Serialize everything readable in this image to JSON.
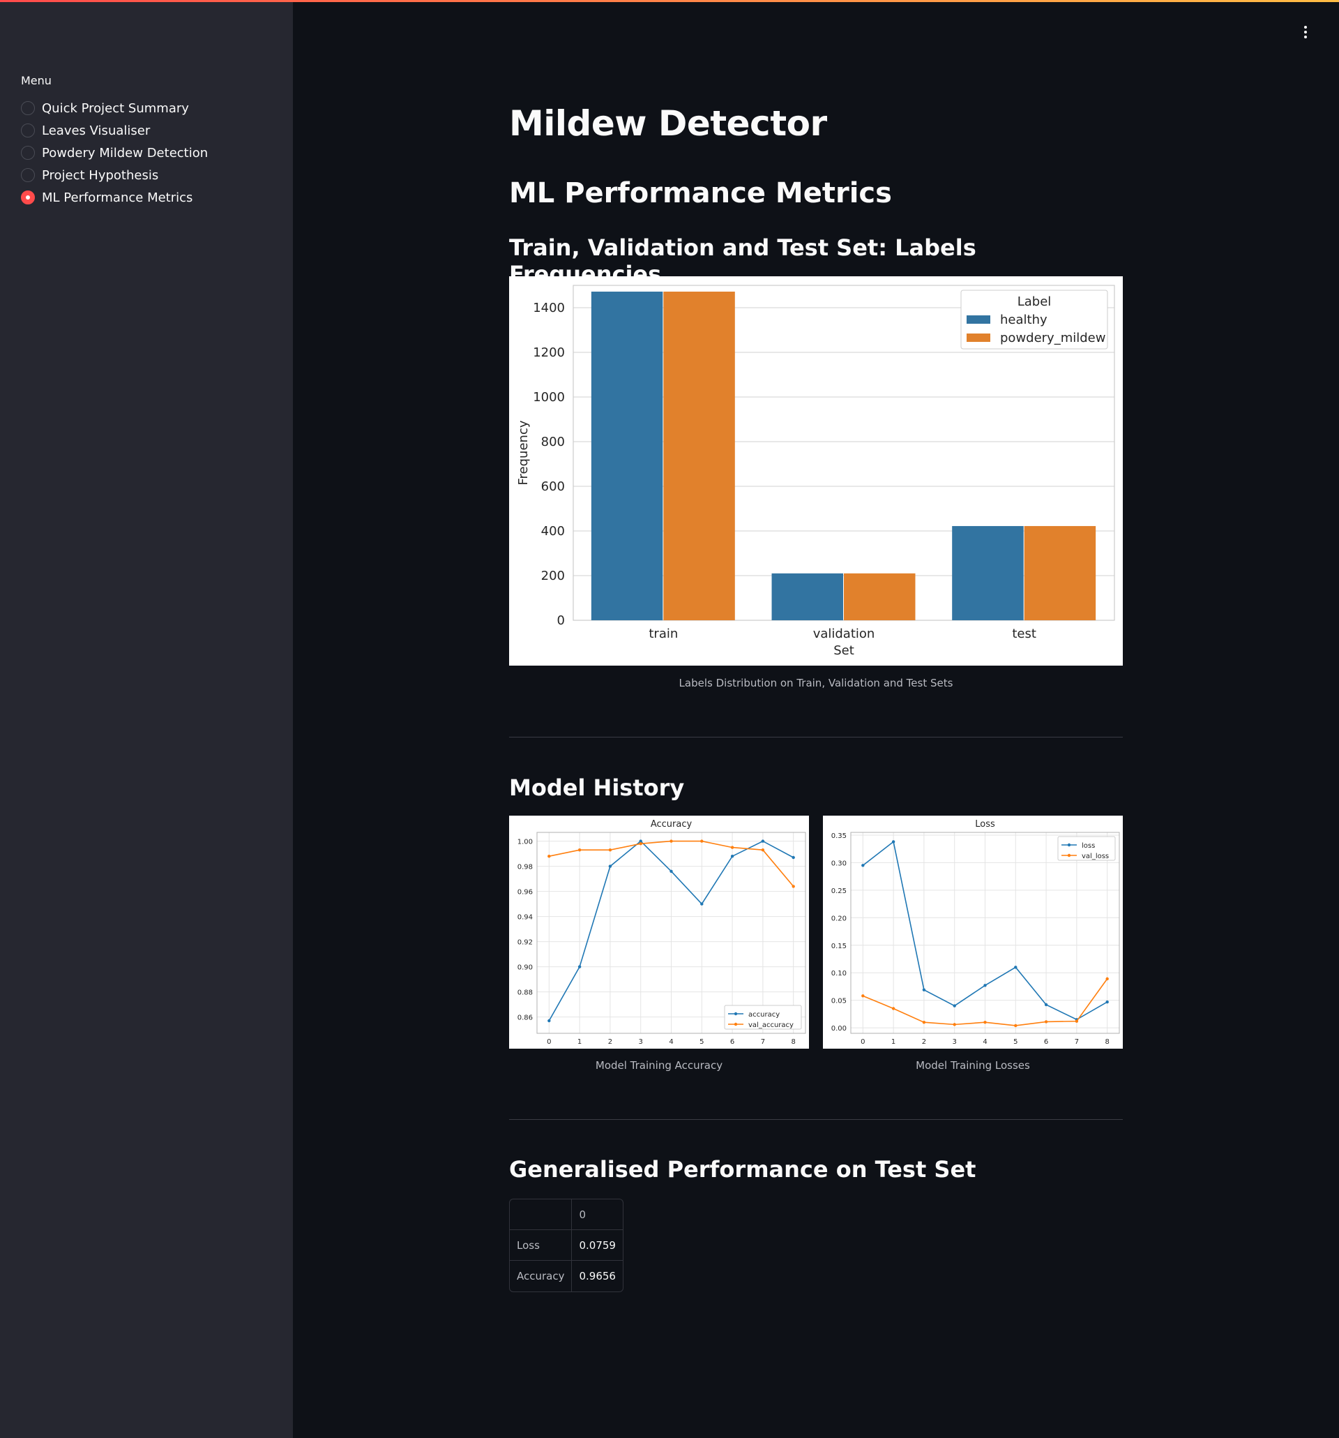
{
  "menu": {
    "title": "Menu",
    "items": [
      {
        "label": "Quick Project Summary",
        "selected": false
      },
      {
        "label": "Leaves Visualiser",
        "selected": false
      },
      {
        "label": "Powdery Mildew Detection",
        "selected": false
      },
      {
        "label": "Project Hypothesis",
        "selected": false
      },
      {
        "label": "ML Performance Metrics",
        "selected": true
      }
    ]
  },
  "page": {
    "title": "Mildew Detector",
    "subtitle": "ML Performance Metrics",
    "labels_section_title": "Train, Validation and Test Set: Labels Frequencies",
    "labels_caption": "Labels Distribution on Train, Validation and Test Sets",
    "history_section_title": "Model History",
    "accuracy_caption": "Model Training Accuracy",
    "loss_caption": "Model Training Losses",
    "generalised_section_title": "Generalised Performance on Test Set"
  },
  "colors": {
    "accent": "#ff4b4b",
    "series_blue": "#1f77b4",
    "series_orange": "#ff7f0e",
    "bar_blue": "#3274a1",
    "bar_orange": "#e1812c"
  },
  "chart_data": [
    {
      "type": "bar",
      "categories": [
        "train",
        "validation",
        "test"
      ],
      "xlabel": "Set",
      "ylabel": "Frequency",
      "ylim": [
        0,
        1500
      ],
      "yticks": [
        0,
        200,
        400,
        600,
        800,
        1000,
        1200,
        1400
      ],
      "legend": {
        "title": "Label",
        "placement": "top-right"
      },
      "series": [
        {
          "name": "healthy",
          "values": [
            1472,
            210,
            422
          ]
        },
        {
          "name": "powdery_mildew",
          "values": [
            1472,
            210,
            422
          ]
        }
      ],
      "grid": true
    },
    {
      "type": "line",
      "title": "Accuracy",
      "x": [
        0,
        1,
        2,
        3,
        4,
        5,
        6,
        7,
        8
      ],
      "ylim": [
        0.847,
        1.007
      ],
      "yticks": [
        0.86,
        0.88,
        0.9,
        0.92,
        0.94,
        0.96,
        0.98,
        1.0
      ],
      "legend": {
        "placement": "bottom-right"
      },
      "series": [
        {
          "name": "accuracy",
          "values": [
            0.857,
            0.9,
            0.98,
            1.0,
            0.976,
            0.95,
            0.988,
            1.0,
            0.987
          ]
        },
        {
          "name": "val_accuracy",
          "values": [
            0.988,
            0.993,
            0.993,
            0.998,
            1.0,
            1.0,
            0.995,
            0.993,
            0.964
          ]
        }
      ],
      "grid": true
    },
    {
      "type": "line",
      "title": "Loss",
      "x": [
        0,
        1,
        2,
        3,
        4,
        5,
        6,
        7,
        8
      ],
      "ylim": [
        -0.01,
        0.355
      ],
      "yticks": [
        0.0,
        0.05,
        0.1,
        0.15,
        0.2,
        0.25,
        0.3,
        0.35
      ],
      "legend": {
        "placement": "top-right"
      },
      "series": [
        {
          "name": "loss",
          "values": [
            0.295,
            0.338,
            0.069,
            0.04,
            0.077,
            0.11,
            0.042,
            0.015,
            0.047
          ]
        },
        {
          "name": "val_loss",
          "values": [
            0.058,
            0.035,
            0.01,
            0.006,
            0.01,
            0.004,
            0.011,
            0.012,
            0.089
          ]
        }
      ],
      "grid": true
    }
  ],
  "perf_table": {
    "column_header": "0",
    "rows": [
      {
        "label": "Loss",
        "value": "0.0759"
      },
      {
        "label": "Accuracy",
        "value": "0.9656"
      }
    ]
  }
}
